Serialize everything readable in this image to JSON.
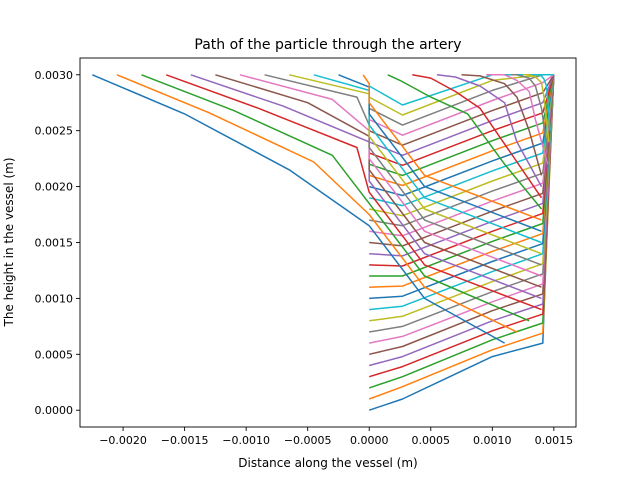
{
  "chart_data": {
    "type": "line",
    "title": "Path of the particle through the artery",
    "xlabel": "Distance along the vessel (m)",
    "ylabel": "The height in the vessel (m)",
    "xlim": [
      -0.00235,
      0.00168
    ],
    "ylim": [
      -0.00015,
      0.00315
    ],
    "grid": false,
    "legend": "none",
    "x_ticks": [
      -0.002,
      -0.0015,
      -0.001,
      -0.0005,
      0.0,
      0.0005,
      0.001,
      0.0015
    ],
    "x_tick_labels": [
      "−0.0020",
      "−0.0015",
      "−0.0010",
      "−0.0005",
      "0.0000",
      "0.0005",
      "0.0010",
      "0.0015"
    ],
    "y_ticks": [
      0.0,
      0.0005,
      0.001,
      0.0015,
      0.002,
      0.0025,
      0.003
    ],
    "y_tick_labels": [
      "0.0000",
      "0.0005",
      "0.0010",
      "0.0015",
      "0.0020",
      "0.0025",
      "0.0030"
    ],
    "colors": [
      "#1f77b4",
      "#ff7f0e",
      "#2ca02c",
      "#d62728",
      "#9467bd",
      "#8c564b",
      "#e377c2",
      "#7f7f7f",
      "#bcbd22",
      "#17becf"
    ],
    "series": [
      {
        "x": [
          0.0,
          0.00027,
          0.001,
          0.00141,
          0.00149
        ],
        "y": [
          0.0,
          0.0001,
          0.00048,
          0.0006,
          0.0029
        ]
      },
      {
        "x": [
          0.0,
          0.00027,
          0.001,
          0.00141,
          0.0015
        ],
        "y": [
          0.0001,
          0.00021,
          0.00054,
          0.00069,
          0.003
        ]
      },
      {
        "x": [
          0.0,
          0.00027,
          0.001,
          0.00141,
          0.0015
        ],
        "y": [
          0.0002,
          0.0003,
          0.00063,
          0.00078,
          0.003
        ]
      },
      {
        "x": [
          0.0,
          0.00027,
          0.001,
          0.00141,
          0.0015
        ],
        "y": [
          0.0003,
          0.00039,
          0.00071,
          0.00086,
          0.003
        ]
      },
      {
        "x": [
          0.0,
          0.00027,
          0.001,
          0.00141,
          0.0015
        ],
        "y": [
          0.0004,
          0.00048,
          0.0008,
          0.00095,
          0.003
        ]
      },
      {
        "x": [
          0.0,
          0.00027,
          0.001,
          0.00141,
          0.0015
        ],
        "y": [
          0.0005,
          0.00057,
          0.00089,
          0.00104,
          0.003
        ]
      },
      {
        "x": [
          0.0,
          0.00027,
          0.001,
          0.00141,
          0.0015
        ],
        "y": [
          0.0006,
          0.00066,
          0.00097,
          0.00113,
          0.003
        ]
      },
      {
        "x": [
          0.0,
          0.00027,
          0.001,
          0.00141,
          0.0015
        ],
        "y": [
          0.0007,
          0.00075,
          0.00106,
          0.00122,
          0.003
        ]
      },
      {
        "x": [
          0.0,
          0.00027,
          0.001,
          0.00141,
          0.0015
        ],
        "y": [
          0.0008,
          0.00084,
          0.00115,
          0.00131,
          0.003
        ]
      },
      {
        "x": [
          0.0,
          0.00027,
          0.001,
          0.00141,
          0.0015
        ],
        "y": [
          0.0009,
          0.00093,
          0.00124,
          0.0014,
          0.003
        ]
      },
      {
        "x": [
          0.0,
          0.00027,
          0.001,
          0.00141,
          0.0015
        ],
        "y": [
          0.001,
          0.00102,
          0.00133,
          0.00149,
          0.003
        ]
      },
      {
        "x": [
          0.0,
          0.00027,
          0.001,
          0.00141,
          0.0015
        ],
        "y": [
          0.0011,
          0.00111,
          0.00142,
          0.00158,
          0.003
        ]
      },
      {
        "x": [
          0.0,
          0.00027,
          0.001,
          0.00141,
          0.0015
        ],
        "y": [
          0.0012,
          0.0012,
          0.00151,
          0.00167,
          0.003
        ]
      },
      {
        "x": [
          0.0,
          0.00027,
          0.001,
          0.00141,
          0.0015
        ],
        "y": [
          0.0013,
          0.00129,
          0.0016,
          0.00176,
          0.003
        ]
      },
      {
        "x": [
          0.0,
          0.00027,
          0.001,
          0.00141,
          0.0015
        ],
        "y": [
          0.0014,
          0.00138,
          0.00169,
          0.00185,
          0.003
        ]
      },
      {
        "x": [
          0.0,
          0.00027,
          0.001,
          0.00141,
          0.0015
        ],
        "y": [
          0.0015,
          0.00147,
          0.00178,
          0.00194,
          0.003
        ]
      },
      {
        "x": [
          0.0,
          0.00027,
          0.001,
          0.00141,
          0.0015
        ],
        "y": [
          0.0016,
          0.00156,
          0.00187,
          0.00203,
          0.003
        ]
      },
      {
        "x": [
          0.0,
          0.00027,
          0.001,
          0.00141,
          0.0015
        ],
        "y": [
          0.0017,
          0.00165,
          0.00196,
          0.00212,
          0.003
        ]
      },
      {
        "x": [
          0.0,
          0.00027,
          0.001,
          0.00141,
          0.0015
        ],
        "y": [
          0.0018,
          0.00174,
          0.00205,
          0.00221,
          0.003
        ]
      },
      {
        "x": [
          0.0,
          0.00027,
          0.001,
          0.00141,
          0.0015
        ],
        "y": [
          0.0019,
          0.00183,
          0.00214,
          0.0023,
          0.003
        ]
      },
      {
        "x": [
          0.0,
          0.00027,
          0.001,
          0.00141,
          0.0015
        ],
        "y": [
          0.002,
          0.00192,
          0.00223,
          0.00239,
          0.003
        ]
      },
      {
        "x": [
          0.0,
          0.00027,
          0.001,
          0.00141,
          0.0015
        ],
        "y": [
          0.0021,
          0.00201,
          0.00232,
          0.00248,
          0.003
        ]
      },
      {
        "x": [
          0.0,
          0.00027,
          0.001,
          0.00141,
          0.0015
        ],
        "y": [
          0.0022,
          0.0021,
          0.00241,
          0.00257,
          0.003
        ]
      },
      {
        "x": [
          0.0,
          0.00027,
          0.001,
          0.00141,
          0.0015
        ],
        "y": [
          0.0023,
          0.00219,
          0.0025,
          0.00266,
          0.003
        ]
      },
      {
        "x": [
          0.0,
          0.00027,
          0.001,
          0.00141,
          0.0015
        ],
        "y": [
          0.0024,
          0.00228,
          0.00259,
          0.00275,
          0.003
        ]
      },
      {
        "x": [
          0.0,
          0.00027,
          0.001,
          0.00141,
          0.0015
        ],
        "y": [
          0.0025,
          0.00237,
          0.00268,
          0.00284,
          0.003
        ]
      },
      {
        "x": [
          0.0,
          0.00027,
          0.001,
          0.00141,
          0.0015
        ],
        "y": [
          0.0026,
          0.00246,
          0.00277,
          0.00293,
          0.003
        ]
      },
      {
        "x": [
          0.0,
          0.00027,
          0.001,
          0.00141,
          0.0015
        ],
        "y": [
          0.0027,
          0.00255,
          0.00286,
          0.003,
          0.003
        ]
      },
      {
        "x": [
          0.0,
          0.00027,
          0.001,
          0.00141,
          0.0015
        ],
        "y": [
          0.0028,
          0.00264,
          0.00295,
          0.003,
          0.003
        ]
      },
      {
        "x": [
          0.0,
          0.00027,
          0.001,
          0.00141,
          0.0015
        ],
        "y": [
          0.0029,
          0.00273,
          0.003,
          0.003,
          0.003
        ]
      },
      {
        "x": [
          -0.00225,
          -0.0015,
          -0.00065,
          0.0,
          0.00045,
          0.0011
        ],
        "y": [
          0.003,
          0.00265,
          0.00215,
          0.00165,
          0.001,
          0.0006
        ]
      },
      {
        "x": [
          -0.00205,
          -0.0013,
          -0.00045,
          0.0,
          0.00045,
          0.0012
        ],
        "y": [
          0.003,
          0.00266,
          0.00222,
          0.00175,
          0.0011,
          0.0007
        ]
      },
      {
        "x": [
          -0.00185,
          -0.0011,
          -0.0003,
          0.0,
          0.00045,
          0.0013
        ],
        "y": [
          0.003,
          0.00268,
          0.00228,
          0.00185,
          0.0012,
          0.0008
        ]
      },
      {
        "x": [
          -0.00165,
          -0.0009,
          -0.0001,
          0.0,
          0.00045,
          0.0014
        ],
        "y": [
          0.003,
          0.0027,
          0.00235,
          0.00195,
          0.0013,
          0.0009
        ]
      },
      {
        "x": [
          -0.00145,
          -0.0007,
          0.0,
          0.0,
          0.00045,
          0.0014
        ],
        "y": [
          0.003,
          0.00272,
          0.0024,
          0.00205,
          0.0014,
          0.001
        ]
      },
      {
        "x": [
          -0.00125,
          -0.0005,
          0.0,
          0.0,
          0.00045,
          0.0014
        ],
        "y": [
          0.003,
          0.00275,
          0.00245,
          0.00215,
          0.0015,
          0.0011
        ]
      },
      {
        "x": [
          -0.00105,
          -0.0003,
          0.0,
          0.0,
          0.00045,
          0.0014
        ],
        "y": [
          0.003,
          0.00278,
          0.0025,
          0.00225,
          0.0016,
          0.0012
        ]
      },
      {
        "x": [
          -0.00085,
          -0.0001,
          0.0,
          0.0,
          0.00045,
          0.0014
        ],
        "y": [
          0.003,
          0.0028,
          0.00255,
          0.00235,
          0.0017,
          0.0013
        ]
      },
      {
        "x": [
          -0.00065,
          0.0,
          0.0,
          0.0,
          0.00045,
          0.0014
        ],
        "y": [
          0.003,
          0.00283,
          0.0026,
          0.00245,
          0.0018,
          0.0014
        ]
      },
      {
        "x": [
          -0.00045,
          0.0,
          0.0,
          0.0,
          0.00045,
          0.0014
        ],
        "y": [
          0.003,
          0.00286,
          0.00265,
          0.00255,
          0.0019,
          0.0015
        ]
      },
      {
        "x": [
          -0.00025,
          0.0,
          0.0,
          0.0,
          0.00045,
          0.0014
        ],
        "y": [
          0.003,
          0.00289,
          0.0027,
          0.00265,
          0.002,
          0.0016
        ]
      },
      {
        "x": [
          -5e-05,
          0.0,
          0.0,
          0.0,
          0.00045,
          0.0014
        ],
        "y": [
          0.003,
          0.00292,
          0.00275,
          0.00275,
          0.0021,
          0.0017
        ]
      },
      {
        "x": [
          0.00015,
          0.00025,
          0.0005,
          0.0008,
          0.0011,
          0.0014
        ],
        "y": [
          0.003,
          0.00295,
          0.0028,
          0.00265,
          0.0022,
          0.0018
        ]
      },
      {
        "x": [
          0.00035,
          0.0005,
          0.0007,
          0.0009,
          0.00115,
          0.0014
        ],
        "y": [
          0.003,
          0.00297,
          0.00285,
          0.0027,
          0.0023,
          0.0019
        ]
      },
      {
        "x": [
          0.00055,
          0.0007,
          0.0009,
          0.0011,
          0.0012,
          0.0014
        ],
        "y": [
          0.003,
          0.00298,
          0.0029,
          0.00275,
          0.0024,
          0.002
        ]
      },
      {
        "x": [
          0.00075,
          0.0009,
          0.0011,
          0.0012,
          0.0013,
          0.0014
        ],
        "y": [
          0.003,
          0.00299,
          0.00292,
          0.0028,
          0.0025,
          0.0021
        ]
      },
      {
        "x": [
          0.00095,
          0.0011,
          0.0012,
          0.0013,
          0.00135,
          0.00145
        ],
        "y": [
          0.003,
          0.003,
          0.00295,
          0.00285,
          0.0026,
          0.0022
        ]
      },
      {
        "x": [
          0.00115,
          0.0012,
          0.0013,
          0.00135,
          0.0014,
          0.00145
        ],
        "y": [
          0.003,
          0.003,
          0.00297,
          0.0029,
          0.0027,
          0.0023
        ]
      },
      {
        "x": [
          0.00125,
          0.0013,
          0.00135,
          0.0014,
          0.00142,
          0.00146
        ],
        "y": [
          0.003,
          0.003,
          0.00298,
          0.00293,
          0.0028,
          0.0024
        ]
      },
      {
        "x": [
          0.00135,
          0.00138,
          0.0014,
          0.00142,
          0.00144,
          0.00147
        ],
        "y": [
          0.003,
          0.003,
          0.00299,
          0.00296,
          0.0029,
          0.0025
        ]
      }
    ]
  }
}
